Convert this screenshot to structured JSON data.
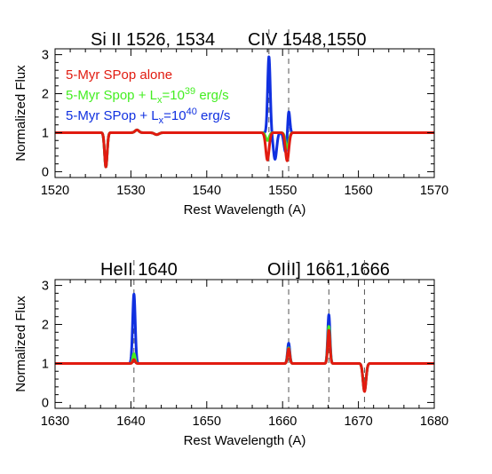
{
  "colors": {
    "red": "#e11b10",
    "green": "#44ee22",
    "blue": "#1030e0",
    "axis": "#000000",
    "marker": "#555555"
  },
  "chart_data": [
    {
      "type": "line",
      "title_left": "Si II 1526, 1534",
      "title_right": "CIV 1548,1550",
      "xlabel": "Rest Wavelength (A)",
      "ylabel": "Normalized Flux",
      "xlim": [
        1520,
        1570
      ],
      "ylim": [
        -0.15,
        3.15
      ],
      "xticks": [
        1520,
        1530,
        1540,
        1550,
        1560,
        1570
      ],
      "yticks": [
        0,
        1,
        2,
        3
      ],
      "legend": {
        "placement": "top-left",
        "entries": [
          {
            "text": "5-Myr SPop alone",
            "color": "red"
          },
          {
            "text": "5-Myr  Spop  + L",
            "sub": "x",
            "mid": "=10",
            "sup": "39",
            "tail": " erg/s",
            "color": "green"
          },
          {
            "text": "5-Myr SPop + L",
            "sub": "x",
            "mid": "=10",
            "sup": "40",
            "tail": " erg/s",
            "color": "blue"
          }
        ]
      },
      "marker_lines": [
        1548.2,
        1550.8
      ],
      "baseline": 1.0,
      "series": [
        {
          "color": "blue",
          "features": [
            {
              "center": 1526.7,
              "amp": -0.88,
              "sigma": 0.17
            },
            {
              "center": 1530.8,
              "amp": 0.07,
              "sigma": 0.25
            },
            {
              "center": 1533.4,
              "amp": -0.05,
              "sigma": 0.3
            },
            {
              "center": 1548.2,
              "amp": 1.95,
              "sigma": 0.17
            },
            {
              "center": 1549.0,
              "amp": -0.68,
              "sigma": 0.22
            },
            {
              "center": 1550.8,
              "amp": 0.62,
              "sigma": 0.15
            },
            {
              "center": 1550.4,
              "amp": -0.5,
              "sigma": 0.22
            }
          ]
        },
        {
          "color": "green",
          "features": [
            {
              "center": 1526.7,
              "amp": -0.88,
              "sigma": 0.17
            },
            {
              "center": 1530.8,
              "amp": 0.07,
              "sigma": 0.25
            },
            {
              "center": 1533.4,
              "amp": -0.05,
              "sigma": 0.3
            },
            {
              "center": 1548.0,
              "amp": -0.2,
              "sigma": 0.22
            },
            {
              "center": 1550.6,
              "amp": -0.4,
              "sigma": 0.22
            }
          ]
        },
        {
          "color": "red",
          "features": [
            {
              "center": 1526.7,
              "amp": -0.88,
              "sigma": 0.17
            },
            {
              "center": 1530.8,
              "amp": 0.07,
              "sigma": 0.25
            },
            {
              "center": 1533.4,
              "amp": -0.05,
              "sigma": 0.3
            },
            {
              "center": 1548.0,
              "amp": -0.7,
              "sigma": 0.22
            },
            {
              "center": 1550.6,
              "amp": -0.72,
              "sigma": 0.22
            }
          ]
        }
      ]
    },
    {
      "type": "line",
      "title_left": "HeII 1640",
      "title_right": "OIII] 1661,1666",
      "xlabel": "Rest Wavelength (A)",
      "ylabel": "Normalized Flux",
      "xlim": [
        1630,
        1680
      ],
      "ylim": [
        -0.15,
        3.15
      ],
      "xticks": [
        1630,
        1640,
        1650,
        1660,
        1670,
        1680
      ],
      "yticks": [
        0,
        1,
        2,
        3
      ],
      "marker_lines": [
        1640.4,
        1660.8,
        1666.1,
        1670.8
      ],
      "baseline": 1.0,
      "series": [
        {
          "color": "blue",
          "features": [
            {
              "center": 1640.4,
              "amp": 1.78,
              "sigma": 0.17
            },
            {
              "center": 1660.8,
              "amp": 0.52,
              "sigma": 0.15
            },
            {
              "center": 1666.1,
              "amp": 1.25,
              "sigma": 0.15
            },
            {
              "center": 1670.8,
              "amp": -0.7,
              "sigma": 0.2
            }
          ]
        },
        {
          "color": "green",
          "features": [
            {
              "center": 1640.4,
              "amp": 0.25,
              "sigma": 0.15
            },
            {
              "center": 1660.8,
              "amp": 0.4,
              "sigma": 0.15
            },
            {
              "center": 1666.1,
              "amp": 0.95,
              "sigma": 0.15
            },
            {
              "center": 1670.8,
              "amp": -0.7,
              "sigma": 0.2
            }
          ]
        },
        {
          "color": "red",
          "features": [
            {
              "center": 1640.4,
              "amp": 0.1,
              "sigma": 0.15
            },
            {
              "center": 1660.8,
              "amp": 0.38,
              "sigma": 0.15
            },
            {
              "center": 1666.1,
              "amp": 0.85,
              "sigma": 0.15
            },
            {
              "center": 1670.8,
              "amp": -0.72,
              "sigma": 0.2
            }
          ]
        }
      ]
    }
  ]
}
